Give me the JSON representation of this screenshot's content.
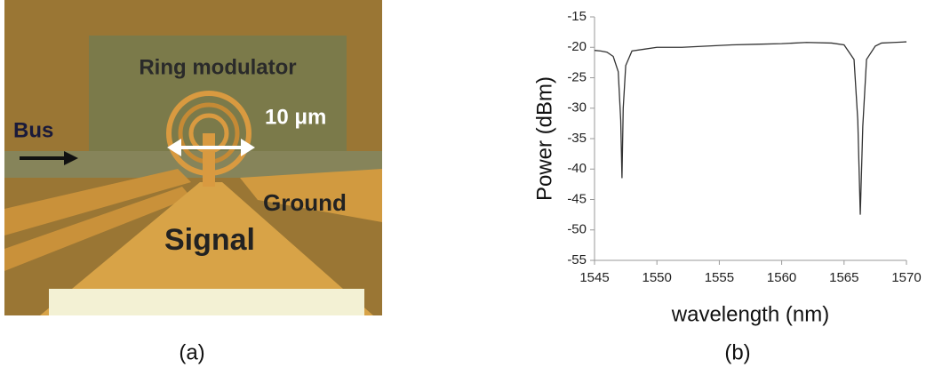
{
  "micrograph": {
    "labels": [
      "Ring modulator",
      "Bus",
      "10 μm",
      "Ground",
      "Signal"
    ],
    "caption": "(a)"
  },
  "chart_data": {
    "type": "line",
    "caption": "(b)",
    "x_label": "wavelength (nm)",
    "y_label": "Power (dBm)",
    "xlim": [
      1545,
      1570
    ],
    "xticks": [
      1545,
      1550,
      1555,
      1560,
      1565,
      1570
    ],
    "ylim": [
      -55,
      -15
    ],
    "yticks": [
      -15,
      -20,
      -25,
      -30,
      -35,
      -40,
      -45,
      -50,
      -55
    ],
    "grid": false,
    "series": [
      {
        "color": "#333333",
        "x": [
          1545,
          1545.5,
          1546,
          1546.5,
          1546.9,
          1547.1,
          1547.2,
          1547.3,
          1547.5,
          1548,
          1549,
          1550,
          1552,
          1554,
          1556,
          1558,
          1560,
          1562,
          1564,
          1565,
          1565.8,
          1566.1,
          1566.3,
          1566.5,
          1566.8,
          1567.5,
          1568,
          1569,
          1570
        ],
        "values": [
          -20.5,
          -20.6,
          -20.8,
          -21.5,
          -24,
          -32,
          -41.5,
          -30,
          -23,
          -20.6,
          -20.3,
          -20,
          -20,
          -19.8,
          -19.6,
          -19.5,
          -19.4,
          -19.2,
          -19.3,
          -19.6,
          -22,
          -32,
          -47.5,
          -33,
          -22,
          -19.8,
          -19.3,
          -19.2,
          -19.1
        ]
      }
    ]
  }
}
